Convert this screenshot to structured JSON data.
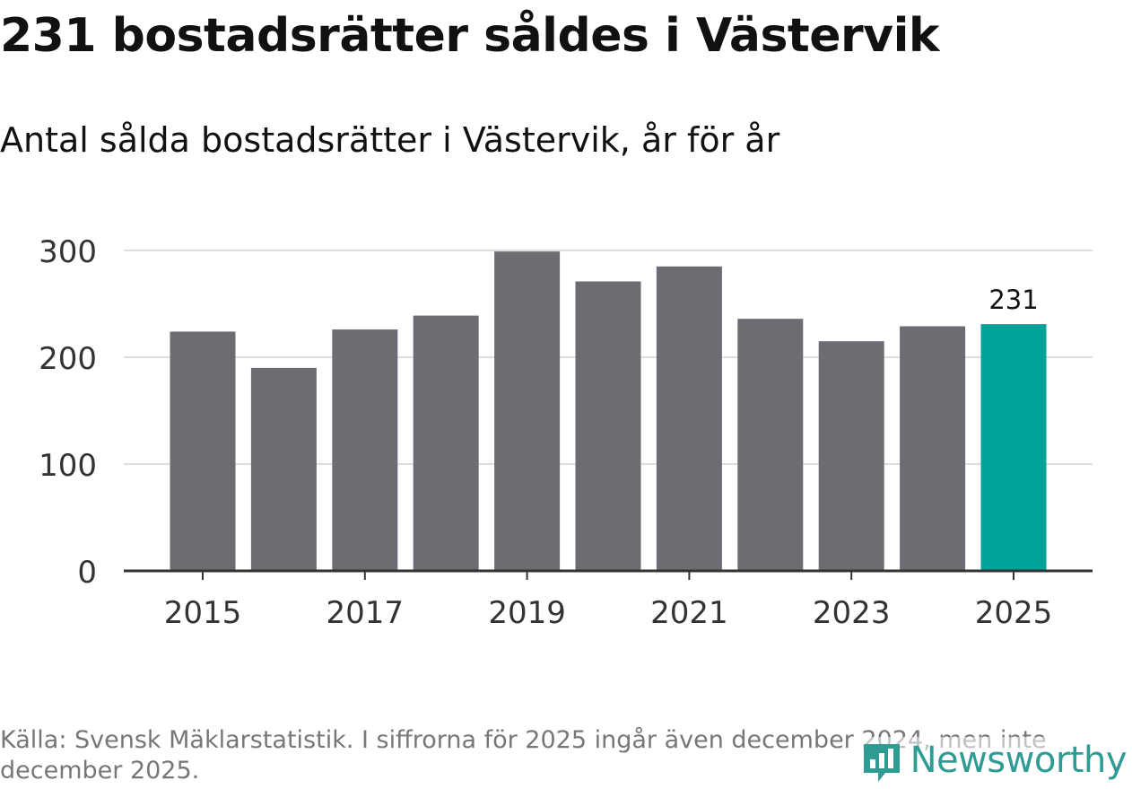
{
  "title": "231 bostadsrätter såldes i Västervik",
  "subtitle": "Antal sålda bostadsrätter i Västervik, år för år",
  "source": "Källa: Svensk Mäklarstatistik. I siffrorna för 2025 ingår även december 2024, men inte december 2025.",
  "logo": {
    "text": "Newsworthy",
    "icon": "bar-chart-bubble-icon"
  },
  "colors": {
    "bar": "#6d6c73",
    "highlight": "#00a39a",
    "grid": "#dddddd",
    "axis": "#333333",
    "tick_label": "#333333"
  },
  "chart_data": {
    "type": "bar",
    "title": "Antal sålda bostadsrätter i Västervik, år för år",
    "xlabel": "",
    "ylabel": "",
    "categories": [
      "2015",
      "2016",
      "2017",
      "2018",
      "2019",
      "2020",
      "2021",
      "2022",
      "2023",
      "2024",
      "2025"
    ],
    "values": [
      224,
      190,
      226,
      239,
      299,
      271,
      285,
      236,
      215,
      229,
      231
    ],
    "highlight_index": 10,
    "highlight_label": "231",
    "x_tick_labels": [
      "2015",
      "2017",
      "2019",
      "2021",
      "2023",
      "2025"
    ],
    "y_ticks": [
      0,
      100,
      200,
      300
    ],
    "ylim": [
      0,
      300
    ],
    "grid": true,
    "legend": "none"
  }
}
